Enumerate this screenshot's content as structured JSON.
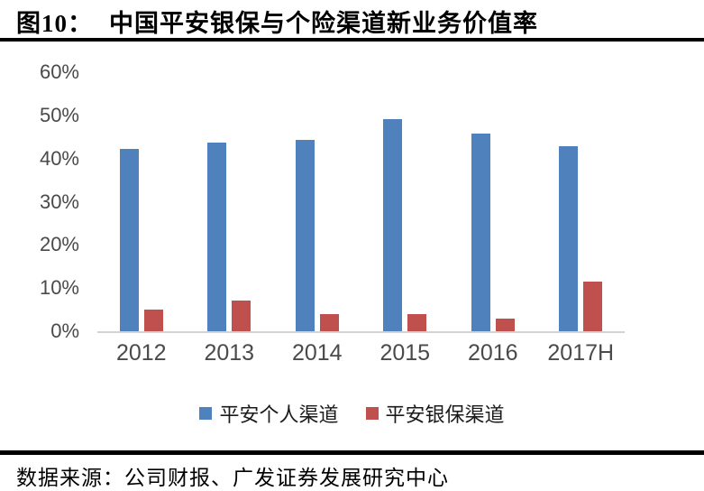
{
  "figure": {
    "title_prefix": "图10：",
    "title_text": "中国平安银保与个险渠道新业务价值率",
    "source": "数据来源：公司财报、广发证券发展研究中心"
  },
  "chart_data": {
    "type": "bar",
    "title": "中国平安银保与个险渠道新业务价值率",
    "categories": [
      "2012",
      "2013",
      "2014",
      "2015",
      "2016",
      "2017H"
    ],
    "series": [
      {
        "name": "平安个人渠道",
        "key": "individual-channel",
        "color": "#4F81BD",
        "values": [
          42.2,
          43.6,
          44.4,
          49.2,
          45.7,
          42.9
        ]
      },
      {
        "name": "平安银保渠道",
        "key": "bancassurance-channel",
        "color": "#C0504D",
        "values": [
          5.0,
          7.2,
          3.9,
          4.0,
          2.9,
          11.6
        ]
      }
    ],
    "ylim": [
      0,
      60
    ],
    "yticks": [
      "0%",
      "10%",
      "20%",
      "30%",
      "40%",
      "50%",
      "60%"
    ],
    "ylabel": "",
    "xlabel": "",
    "grid": false,
    "legend_position": "bottom"
  }
}
